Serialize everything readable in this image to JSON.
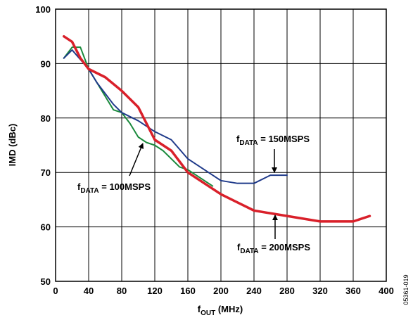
{
  "chart_data": {
    "type": "line",
    "xlabel": {
      "main": "f",
      "sub": "OUT",
      "rest": " (MHz)"
    },
    "ylabel": "IMD (dBc)",
    "xlim": [
      0,
      400
    ],
    "ylim": [
      50,
      100
    ],
    "xticks": [
      0,
      40,
      80,
      120,
      160,
      200,
      240,
      280,
      320,
      360,
      400
    ],
    "yticks": [
      50,
      60,
      70,
      80,
      90,
      100
    ],
    "grid": true,
    "series": [
      {
        "name": "100MSPS",
        "color": "#1a8a3c",
        "x": [
          10,
          20,
          30,
          40,
          50,
          60,
          70,
          80,
          90,
          100,
          110,
          120,
          130,
          140,
          150,
          160,
          170,
          180,
          190
        ],
        "y": [
          91,
          93,
          93,
          89,
          86.5,
          84,
          81.5,
          81,
          79,
          76.5,
          75.5,
          75,
          74,
          72.5,
          71,
          70.5,
          69.5,
          68.5,
          67.5
        ]
      },
      {
        "name": "150MSPS",
        "color": "#1f3a8a",
        "x": [
          10,
          20,
          40,
          50,
          60,
          70,
          80,
          100,
          120,
          140,
          160,
          180,
          200,
          220,
          240,
          260,
          280
        ],
        "y": [
          91,
          92.5,
          89,
          86.5,
          84.5,
          82.5,
          81,
          79.5,
          77.5,
          76,
          72.5,
          70.5,
          68.5,
          68,
          68,
          69.5,
          69.5
        ]
      },
      {
        "name": "200MSPS",
        "color": "#d9202a",
        "x": [
          10,
          20,
          30,
          40,
          60,
          80,
          100,
          120,
          140,
          160,
          180,
          200,
          220,
          240,
          260,
          280,
          300,
          320,
          340,
          360,
          380
        ],
        "y": [
          95,
          94,
          91,
          89,
          87.5,
          85,
          82,
          76,
          74,
          70,
          68,
          66,
          64.5,
          63,
          62.5,
          62,
          61.5,
          61,
          61,
          61,
          62
        ]
      }
    ],
    "annotations": [
      {
        "main": "f",
        "sub": "DATA",
        "rest": " = 100MSPS"
      },
      {
        "main": "f",
        "sub": "DATA",
        "rest": " = 150MSPS"
      },
      {
        "main": "f",
        "sub": "DATA",
        "rest": " = 200MSPS"
      }
    ],
    "figure_code": "05361-019"
  }
}
